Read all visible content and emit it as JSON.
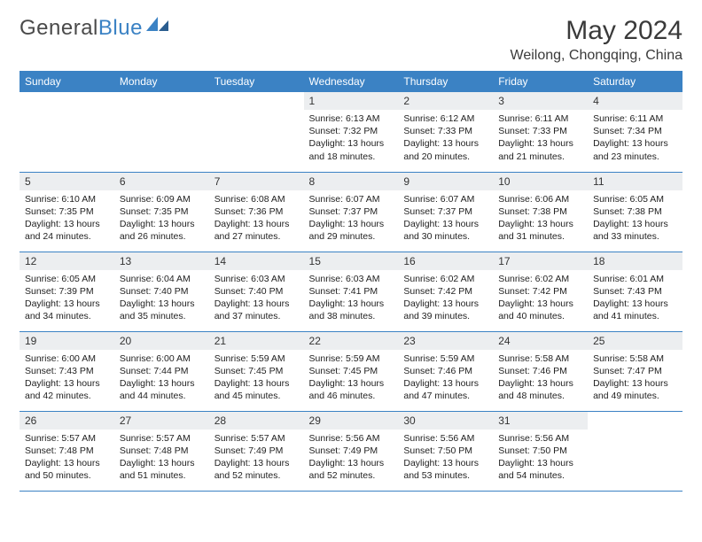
{
  "brand": {
    "part1": "General",
    "part2": "Blue"
  },
  "title": "May 2024",
  "location": "Weilong, Chongqing, China",
  "colors": {
    "header_bg": "#3b82c4",
    "header_text": "#ffffff",
    "daynum_bg": "#eceef0",
    "border": "#3b82c4",
    "text": "#222222",
    "title_text": "#3a3a3a"
  },
  "daynames": [
    "Sunday",
    "Monday",
    "Tuesday",
    "Wednesday",
    "Thursday",
    "Friday",
    "Saturday"
  ],
  "weeks": [
    [
      null,
      null,
      null,
      {
        "n": "1",
        "sr": "6:13 AM",
        "ss": "7:32 PM",
        "dl": "13 hours and 18 minutes."
      },
      {
        "n": "2",
        "sr": "6:12 AM",
        "ss": "7:33 PM",
        "dl": "13 hours and 20 minutes."
      },
      {
        "n": "3",
        "sr": "6:11 AM",
        "ss": "7:33 PM",
        "dl": "13 hours and 21 minutes."
      },
      {
        "n": "4",
        "sr": "6:11 AM",
        "ss": "7:34 PM",
        "dl": "13 hours and 23 minutes."
      }
    ],
    [
      {
        "n": "5",
        "sr": "6:10 AM",
        "ss": "7:35 PM",
        "dl": "13 hours and 24 minutes."
      },
      {
        "n": "6",
        "sr": "6:09 AM",
        "ss": "7:35 PM",
        "dl": "13 hours and 26 minutes."
      },
      {
        "n": "7",
        "sr": "6:08 AM",
        "ss": "7:36 PM",
        "dl": "13 hours and 27 minutes."
      },
      {
        "n": "8",
        "sr": "6:07 AM",
        "ss": "7:37 PM",
        "dl": "13 hours and 29 minutes."
      },
      {
        "n": "9",
        "sr": "6:07 AM",
        "ss": "7:37 PM",
        "dl": "13 hours and 30 minutes."
      },
      {
        "n": "10",
        "sr": "6:06 AM",
        "ss": "7:38 PM",
        "dl": "13 hours and 31 minutes."
      },
      {
        "n": "11",
        "sr": "6:05 AM",
        "ss": "7:38 PM",
        "dl": "13 hours and 33 minutes."
      }
    ],
    [
      {
        "n": "12",
        "sr": "6:05 AM",
        "ss": "7:39 PM",
        "dl": "13 hours and 34 minutes."
      },
      {
        "n": "13",
        "sr": "6:04 AM",
        "ss": "7:40 PM",
        "dl": "13 hours and 35 minutes."
      },
      {
        "n": "14",
        "sr": "6:03 AM",
        "ss": "7:40 PM",
        "dl": "13 hours and 37 minutes."
      },
      {
        "n": "15",
        "sr": "6:03 AM",
        "ss": "7:41 PM",
        "dl": "13 hours and 38 minutes."
      },
      {
        "n": "16",
        "sr": "6:02 AM",
        "ss": "7:42 PM",
        "dl": "13 hours and 39 minutes."
      },
      {
        "n": "17",
        "sr": "6:02 AM",
        "ss": "7:42 PM",
        "dl": "13 hours and 40 minutes."
      },
      {
        "n": "18",
        "sr": "6:01 AM",
        "ss": "7:43 PM",
        "dl": "13 hours and 41 minutes."
      }
    ],
    [
      {
        "n": "19",
        "sr": "6:00 AM",
        "ss": "7:43 PM",
        "dl": "13 hours and 42 minutes."
      },
      {
        "n": "20",
        "sr": "6:00 AM",
        "ss": "7:44 PM",
        "dl": "13 hours and 44 minutes."
      },
      {
        "n": "21",
        "sr": "5:59 AM",
        "ss": "7:45 PM",
        "dl": "13 hours and 45 minutes."
      },
      {
        "n": "22",
        "sr": "5:59 AM",
        "ss": "7:45 PM",
        "dl": "13 hours and 46 minutes."
      },
      {
        "n": "23",
        "sr": "5:59 AM",
        "ss": "7:46 PM",
        "dl": "13 hours and 47 minutes."
      },
      {
        "n": "24",
        "sr": "5:58 AM",
        "ss": "7:46 PM",
        "dl": "13 hours and 48 minutes."
      },
      {
        "n": "25",
        "sr": "5:58 AM",
        "ss": "7:47 PM",
        "dl": "13 hours and 49 minutes."
      }
    ],
    [
      {
        "n": "26",
        "sr": "5:57 AM",
        "ss": "7:48 PM",
        "dl": "13 hours and 50 minutes."
      },
      {
        "n": "27",
        "sr": "5:57 AM",
        "ss": "7:48 PM",
        "dl": "13 hours and 51 minutes."
      },
      {
        "n": "28",
        "sr": "5:57 AM",
        "ss": "7:49 PM",
        "dl": "13 hours and 52 minutes."
      },
      {
        "n": "29",
        "sr": "5:56 AM",
        "ss": "7:49 PM",
        "dl": "13 hours and 52 minutes."
      },
      {
        "n": "30",
        "sr": "5:56 AM",
        "ss": "7:50 PM",
        "dl": "13 hours and 53 minutes."
      },
      {
        "n": "31",
        "sr": "5:56 AM",
        "ss": "7:50 PM",
        "dl": "13 hours and 54 minutes."
      },
      null
    ]
  ],
  "labels": {
    "sunrise": "Sunrise:",
    "sunset": "Sunset:",
    "daylight": "Daylight:"
  }
}
